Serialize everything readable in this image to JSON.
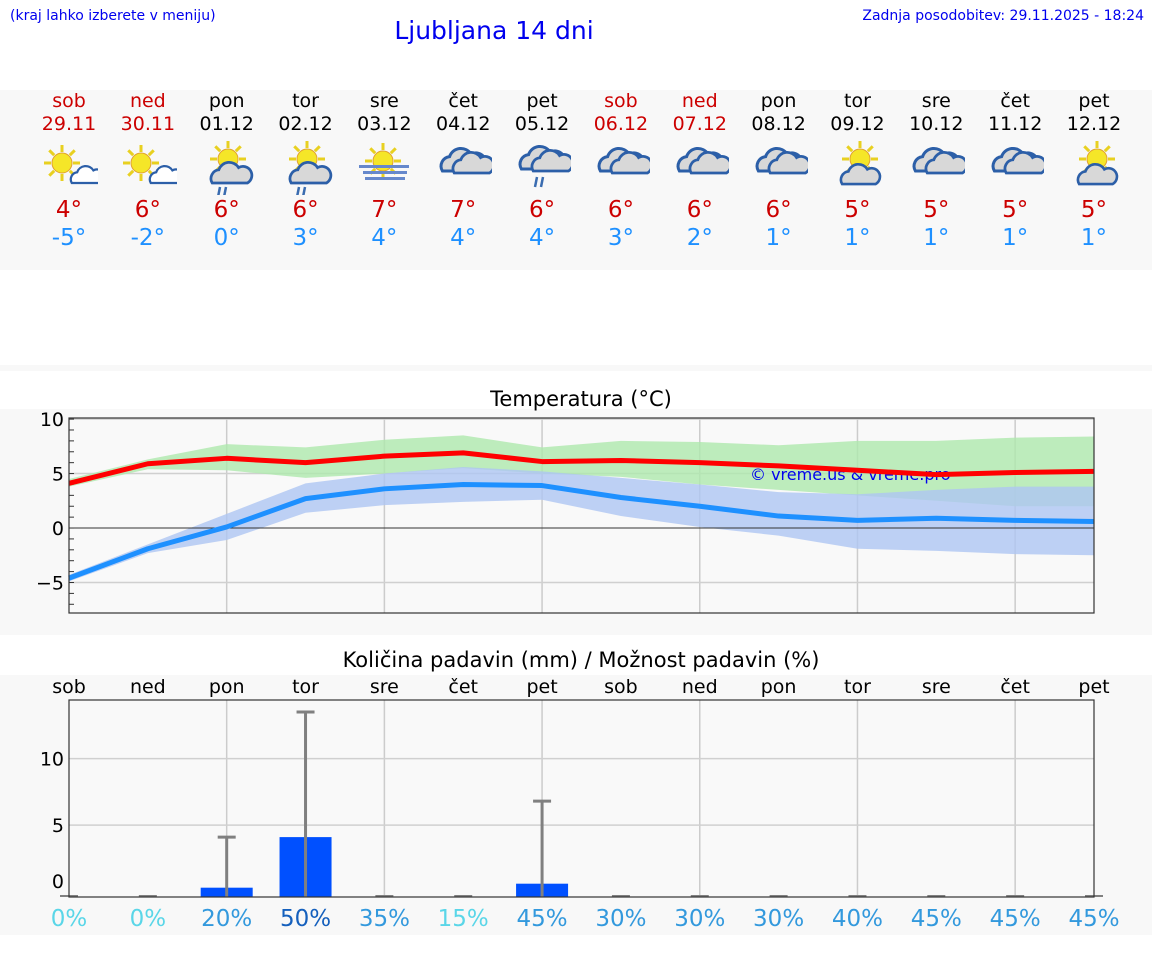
{
  "header": {
    "hint": "(kraj lahko izberete v meniju)",
    "title": "Ljubljana 14 dni",
    "updated": "Zadnja posodobitev: 29.11.2025 - 18:24"
  },
  "days": [
    {
      "name": "sob",
      "date": "29.11",
      "weekend": true,
      "icon": "sun-small-cloud",
      "tmax": "4°",
      "tmin": "-5°"
    },
    {
      "name": "ned",
      "date": "30.11",
      "weekend": true,
      "icon": "sun-small-cloud",
      "tmax": "6°",
      "tmin": "-2°"
    },
    {
      "name": "pon",
      "date": "01.12",
      "weekend": false,
      "icon": "sun-cloud-rain",
      "tmax": "6°",
      "tmin": "0°"
    },
    {
      "name": "tor",
      "date": "02.12",
      "weekend": false,
      "icon": "sun-cloud-rain",
      "tmax": "6°",
      "tmin": "3°"
    },
    {
      "name": "sre",
      "date": "03.12",
      "weekend": false,
      "icon": "sun-fog",
      "tmax": "7°",
      "tmin": "4°"
    },
    {
      "name": "čet",
      "date": "04.12",
      "weekend": false,
      "icon": "overcast",
      "tmax": "7°",
      "tmin": "4°"
    },
    {
      "name": "pet",
      "date": "05.12",
      "weekend": false,
      "icon": "overcast-rain",
      "tmax": "6°",
      "tmin": "4°"
    },
    {
      "name": "sob",
      "date": "06.12",
      "weekend": true,
      "icon": "overcast",
      "tmax": "6°",
      "tmin": "3°"
    },
    {
      "name": "ned",
      "date": "07.12",
      "weekend": true,
      "icon": "overcast",
      "tmax": "6°",
      "tmin": "2°"
    },
    {
      "name": "pon",
      "date": "08.12",
      "weekend": false,
      "icon": "overcast",
      "tmax": "6°",
      "tmin": "1°"
    },
    {
      "name": "tor",
      "date": "09.12",
      "weekend": false,
      "icon": "sun-cloud",
      "tmax": "5°",
      "tmin": "1°"
    },
    {
      "name": "sre",
      "date": "10.12",
      "weekend": false,
      "icon": "overcast",
      "tmax": "5°",
      "tmin": "1°"
    },
    {
      "name": "čet",
      "date": "11.12",
      "weekend": false,
      "icon": "overcast",
      "tmax": "5°",
      "tmin": "1°"
    },
    {
      "name": "pet",
      "date": "12.12",
      "weekend": false,
      "icon": "sun-cloud",
      "tmax": "5°",
      "tmin": "1°"
    }
  ],
  "chart_data": [
    {
      "type": "line",
      "title": "Temperatura (°C)",
      "watermark": "© vreme.us & vreme.pro",
      "ylim": [
        -7.8,
        10.1
      ],
      "yticks": [
        "10",
        "5",
        "0",
        "−5"
      ],
      "ytick_values": [
        10,
        5,
        0,
        -5
      ],
      "grid": true,
      "colors": {
        "max": "#ff0000",
        "min": "#1e90ff",
        "max_band": "#aee8ad",
        "min_band": "#aec6f2",
        "watermark": "#0000ee"
      },
      "series": [
        {
          "key": "max",
          "values": [
            4.1,
            5.9,
            6.4,
            6.0,
            6.6,
            6.9,
            6.1,
            6.2,
            6.0,
            5.7,
            5.3,
            4.9,
            5.1,
            5.2
          ],
          "band_low": [
            3.8,
            5.4,
            5.3,
            4.6,
            5.0,
            5.5,
            5.0,
            4.7,
            4.0,
            3.5,
            3.0,
            2.5,
            2.0,
            2.0
          ],
          "band_high": [
            4.5,
            6.3,
            7.7,
            7.4,
            8.1,
            8.5,
            7.4,
            8.0,
            7.9,
            7.6,
            8.0,
            8.0,
            8.3,
            8.4
          ]
        },
        {
          "key": "min",
          "values": [
            -4.6,
            -1.9,
            0.1,
            2.7,
            3.6,
            4.0,
            3.9,
            2.8,
            2.0,
            1.1,
            0.7,
            0.9,
            0.7,
            0.6
          ],
          "band_low": [
            -4.9,
            -2.3,
            -1.1,
            1.4,
            2.1,
            2.4,
            2.6,
            1.1,
            0.1,
            -0.7,
            -1.9,
            -2.1,
            -2.4,
            -2.5
          ],
          "band_high": [
            -4.3,
            -1.5,
            1.3,
            4.1,
            5.0,
            5.6,
            5.2,
            4.6,
            4.0,
            3.3,
            3.1,
            3.5,
            3.8,
            3.8
          ]
        }
      ]
    },
    {
      "type": "bar",
      "title": "Količina padavin (mm) / Možnost padavin (%)",
      "ylim": [
        -0.4,
        14.4
      ],
      "yticks": [
        "10",
        "5",
        "0"
      ],
      "ytick_values": [
        10,
        5,
        0
      ],
      "grid": true,
      "categories": [
        "sob",
        "ned",
        "pon",
        "tor",
        "sre",
        "čet",
        "pet",
        "sob",
        "ned",
        "pon",
        "tor",
        "sre",
        "čet",
        "pet"
      ],
      "values": [
        0,
        0,
        0.3,
        4.1,
        0,
        0,
        0.6,
        0,
        0,
        0,
        0,
        0,
        0,
        0
      ],
      "error_high": [
        0,
        0,
        4.1,
        13.5,
        0,
        0,
        6.8,
        0,
        0,
        0,
        0,
        0,
        0,
        0
      ],
      "probability": [
        "0%",
        "0%",
        "20%",
        "50%",
        "35%",
        "15%",
        "45%",
        "30%",
        "30%",
        "30%",
        "40%",
        "45%",
        "45%",
        "45%"
      ],
      "colors": {
        "bar": "#0050ff",
        "error": "#808080",
        "prob_low": "#5ad6e8",
        "prob_mid": "#3399dd",
        "prob_high": "#1560bd"
      }
    }
  ]
}
